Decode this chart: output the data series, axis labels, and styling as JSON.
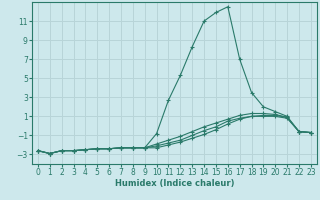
{
  "xlabel": "Humidex (Indice chaleur)",
  "ylabel": "",
  "background_color": "#cde8ec",
  "grid_color": "#b8d4d8",
  "line_color": "#2a7a6a",
  "x_values": [
    0,
    1,
    2,
    3,
    4,
    5,
    6,
    7,
    8,
    9,
    10,
    11,
    12,
    13,
    14,
    15,
    16,
    17,
    18,
    19,
    20,
    21,
    22,
    23
  ],
  "lines": [
    [
      -2.6,
      -2.9,
      -2.6,
      -2.6,
      -2.5,
      -2.4,
      -2.4,
      -2.3,
      -2.3,
      -2.3,
      -2.3,
      -2.0,
      -1.7,
      -1.3,
      -0.9,
      -0.4,
      0.2,
      0.7,
      1.0,
      1.1,
      1.1,
      0.9,
      -0.6,
      -0.7
    ],
    [
      -2.6,
      -2.9,
      -2.6,
      -2.6,
      -2.5,
      -2.4,
      -2.4,
      -2.3,
      -2.3,
      -2.3,
      -1.9,
      -1.5,
      -1.1,
      -0.6,
      -0.1,
      0.3,
      0.7,
      1.1,
      1.3,
      1.3,
      1.2,
      0.9,
      -0.6,
      -0.7
    ],
    [
      -2.6,
      -2.9,
      -2.6,
      -2.6,
      -2.5,
      -2.4,
      -2.4,
      -2.3,
      -2.3,
      -2.3,
      -2.1,
      -1.8,
      -1.5,
      -1.0,
      -0.5,
      -0.1,
      0.5,
      0.8,
      1.0,
      1.0,
      1.0,
      0.8,
      -0.6,
      -0.7
    ],
    [
      -2.6,
      -2.9,
      -2.6,
      -2.6,
      -2.5,
      -2.4,
      -2.4,
      -2.3,
      -2.3,
      -2.3,
      -0.8,
      2.7,
      5.3,
      8.3,
      11.0,
      11.9,
      12.5,
      7.0,
      3.5,
      2.0,
      1.5,
      1.0,
      -0.6,
      -0.7
    ]
  ],
  "ylim": [
    -4,
    13
  ],
  "yticks": [
    -3,
    -1,
    1,
    3,
    5,
    7,
    9,
    11
  ],
  "xlim": [
    -0.5,
    23.5
  ],
  "xticks": [
    0,
    1,
    2,
    3,
    4,
    5,
    6,
    7,
    8,
    9,
    10,
    11,
    12,
    13,
    14,
    15,
    16,
    17,
    18,
    19,
    20,
    21,
    22,
    23
  ],
  "tick_fontsize": 5.5,
  "xlabel_fontsize": 6.0
}
